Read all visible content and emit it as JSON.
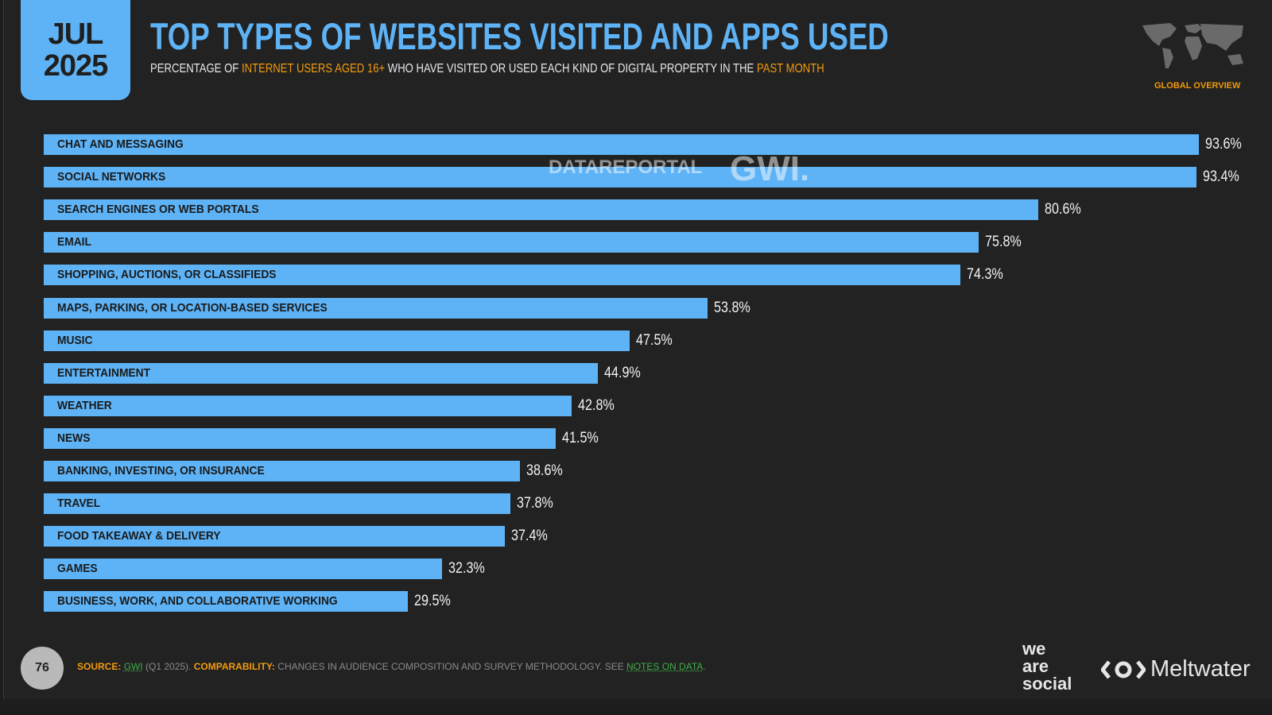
{
  "header": {
    "month": "JUL",
    "year": "2025",
    "title": "TOP TYPES OF WEBSITES VISITED AND APPS USED",
    "subtitle_parts": [
      "PERCENTAGE OF ",
      "INTERNET USERS AGED 16+",
      " WHO HAVE VISITED OR USED EACH KIND OF DIGITAL PROPERTY IN THE ",
      "PAST MONTH"
    ],
    "region": "GLOBAL OVERVIEW"
  },
  "watermark": {
    "left": "DATAREPORTAL",
    "right": "GWI."
  },
  "colors": {
    "bar": "#5eb3f6",
    "accent": "#f29b0c",
    "background": "#222222"
  },
  "chart_data": {
    "type": "bar",
    "orientation": "horizontal",
    "categories": [
      "CHAT AND MESSAGING",
      "SOCIAL NETWORKS",
      "SEARCH ENGINES OR WEB PORTALS",
      "EMAIL",
      "SHOPPING, AUCTIONS, OR CLASSIFIEDS",
      "MAPS, PARKING, OR LOCATION-BASED SERVICES",
      "MUSIC",
      "ENTERTAINMENT",
      "WEATHER",
      "NEWS",
      "BANKING, INVESTING, OR INSURANCE",
      "TRAVEL",
      "FOOD TAKEAWAY & DELIVERY",
      "GAMES",
      "BUSINESS, WORK, AND COLLABORATIVE WORKING"
    ],
    "values": [
      93.6,
      93.4,
      80.6,
      75.8,
      74.3,
      53.8,
      47.5,
      44.9,
      42.8,
      41.5,
      38.6,
      37.8,
      37.4,
      32.3,
      29.5
    ],
    "value_labels": [
      "93.6%",
      "93.4%",
      "80.6%",
      "75.8%",
      "74.3%",
      "53.8%",
      "47.5%",
      "44.9%",
      "42.8%",
      "41.5%",
      "38.6%",
      "37.8%",
      "37.4%",
      "32.3%",
      "29.5%"
    ],
    "unit": "%"
  },
  "footer": {
    "page": "76",
    "source_label": "SOURCE:",
    "source": "GWI",
    "source_detail": " (Q1 2025). ",
    "comparability_label": "COMPARABILITY:",
    "comparability": " CHANGES IN AUDIENCE COMPOSITION AND SURVEY METHODOLOGY. SEE ",
    "notes_link": "NOTES ON DATA",
    "end": "."
  },
  "logos": {
    "we_are_social": [
      "we",
      "are",
      "social"
    ],
    "meltwater": "Meltwater"
  }
}
